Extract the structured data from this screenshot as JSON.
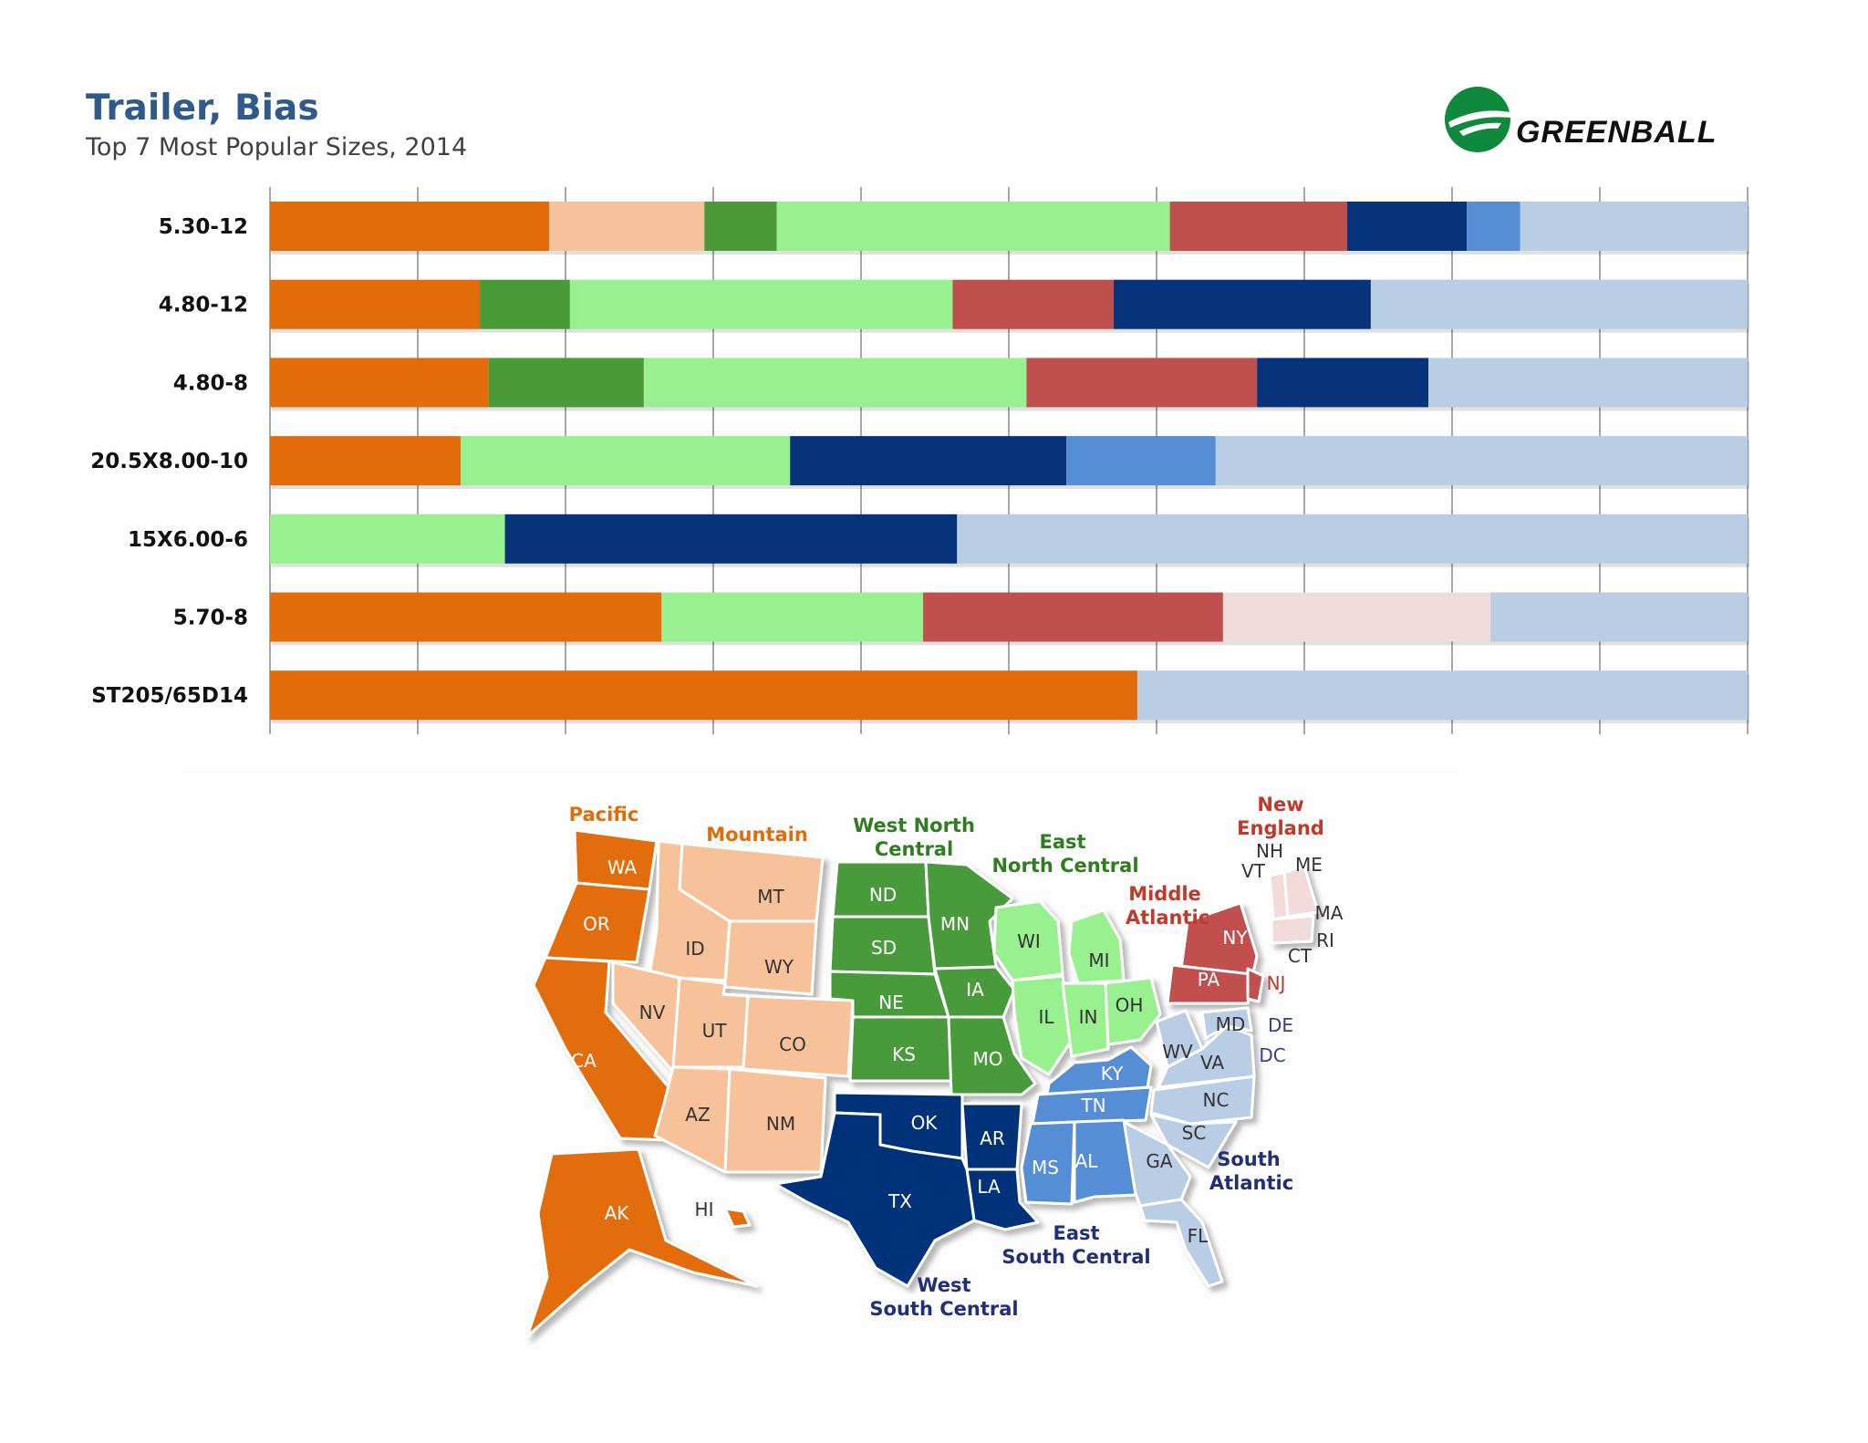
{
  "header": {
    "title": "Trailer, Bias",
    "subtitle": "Top 7 Most Popular Sizes, 2014",
    "logo_text": "GREENBALL"
  },
  "colors": {
    "Pacific": "#e36c0a",
    "Mountain": "#f7c29a",
    "West North Central": "#4a9a3a",
    "East North Central": "#98f08e",
    "Middle Atlantic": "#c0504d",
    "New England": "#f2dcdb",
    "West South Central": "#06337a",
    "East South Central": "#558ed5",
    "South Atlantic": "#b9cde5"
  },
  "chart_data": {
    "type": "bar",
    "stacked": true,
    "orientation": "horizontal",
    "normalized": true,
    "title": "Trailer, Bias",
    "subtitle": "Top 7 Most Popular Sizes, 2014",
    "xlim": [
      0,
      100
    ],
    "grid": true,
    "categories": [
      "5.30-12",
      "4.80-12",
      "4.80-8",
      "20.5X8.00-10",
      "15X6.00-6",
      "5.70-8",
      "ST205/65D14"
    ],
    "series": [
      {
        "name": "Pacific",
        "values": [
          18.9,
          14.2,
          14.8,
          12.9,
          0,
          26.5,
          58.7
        ]
      },
      {
        "name": "Mountain",
        "values": [
          10.5,
          0,
          0,
          0,
          0,
          0,
          0
        ]
      },
      {
        "name": "West North Central",
        "values": [
          4.9,
          6.1,
          10.5,
          0,
          0,
          0,
          0
        ]
      },
      {
        "name": "East North Central",
        "values": [
          26.6,
          25.9,
          25.9,
          22.3,
          15.9,
          17.7,
          0
        ]
      },
      {
        "name": "Middle Atlantic",
        "values": [
          12.0,
          10.9,
          15.6,
          0,
          0,
          20.3,
          0
        ]
      },
      {
        "name": "New England",
        "values": [
          0,
          0,
          0,
          0,
          0,
          18.1,
          0
        ]
      },
      {
        "name": "West South Central",
        "values": [
          8.1,
          17.4,
          11.6,
          18.7,
          30.6,
          0,
          0
        ]
      },
      {
        "name": "East South Central",
        "values": [
          3.6,
          0,
          0,
          10.1,
          0,
          0,
          0
        ]
      },
      {
        "name": "South Atlantic",
        "values": [
          15.4,
          25.5,
          21.6,
          36.0,
          53.5,
          17.4,
          41.3
        ]
      }
    ]
  },
  "map": {
    "regions": [
      {
        "key": "Pacific",
        "lines": [
          "Pacific"
        ]
      },
      {
        "key": "Mountain",
        "lines": [
          "Mountain"
        ]
      },
      {
        "key": "West North Central",
        "lines": [
          "West North",
          "Central"
        ]
      },
      {
        "key": "East North Central",
        "lines": [
          "East",
          "North Central"
        ]
      },
      {
        "key": "Middle Atlantic",
        "lines": [
          "Middle",
          "Atlantic"
        ]
      },
      {
        "key": "New England",
        "lines": [
          "New",
          "England"
        ]
      },
      {
        "key": "South Atlantic",
        "lines": [
          "South",
          "Atlantic"
        ]
      },
      {
        "key": "East South Central",
        "lines": [
          "East",
          "South Central"
        ]
      },
      {
        "key": "West South Central",
        "lines": [
          "West",
          "South Central"
        ]
      }
    ],
    "states": [
      "WA",
      "OR",
      "CA",
      "AK",
      "HI",
      "MT",
      "ID",
      "WY",
      "NV",
      "UT",
      "CO",
      "AZ",
      "NM",
      "ND",
      "SD",
      "NE",
      "KS",
      "MN",
      "IA",
      "MO",
      "WI",
      "MI",
      "IL",
      "IN",
      "OH",
      "NY",
      "PA",
      "NJ",
      "VT",
      "NH",
      "ME",
      "MA",
      "RI",
      "CT",
      "MD",
      "DE",
      "DC",
      "WV",
      "VA",
      "NC",
      "SC",
      "GA",
      "FL",
      "KY",
      "TN",
      "MS",
      "AL",
      "OK",
      "TX",
      "AR",
      "LA"
    ]
  }
}
